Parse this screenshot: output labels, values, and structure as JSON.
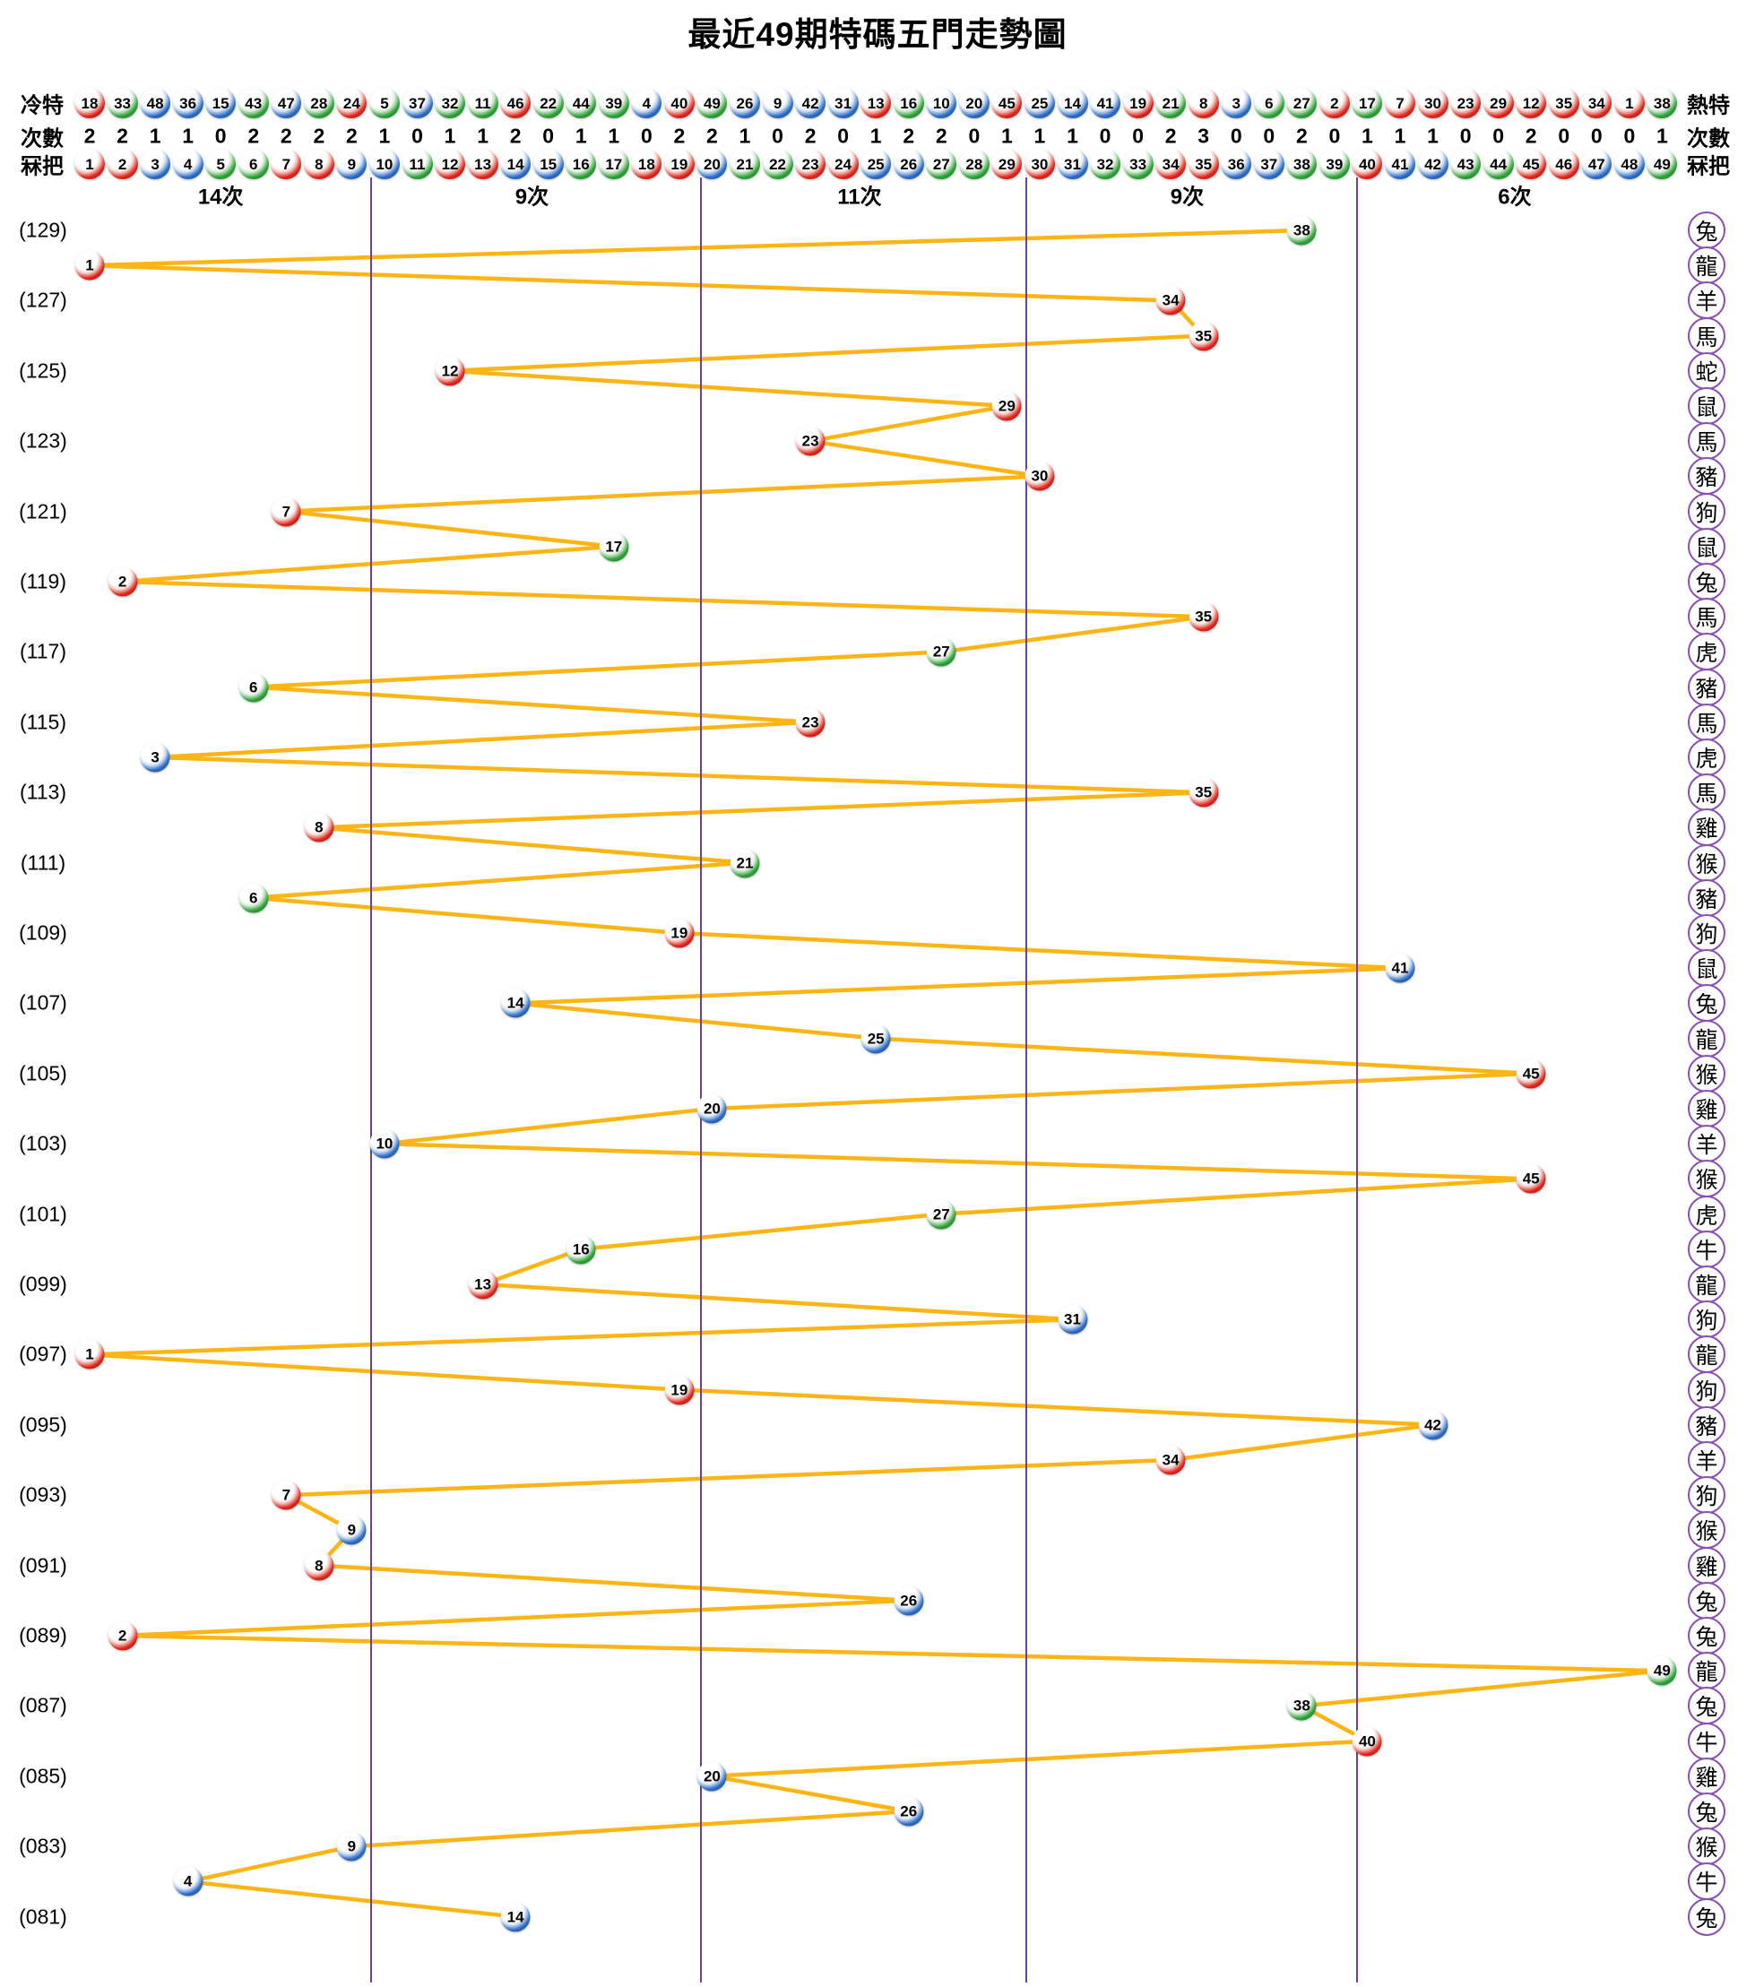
{
  "title": "最近49期特碼五門走勢圖",
  "colors": {
    "red": "#d6120f",
    "blue": "#1e5fc2",
    "green": "#2e9e41",
    "line": "#fdb515",
    "divider": "#6a3fa0",
    "zodiac_ring": "#8a4fb5"
  },
  "ball_color_groups": {
    "red": [
      1,
      2,
      7,
      8,
      12,
      13,
      18,
      19,
      23,
      24,
      29,
      30,
      34,
      35,
      40,
      45,
      46
    ],
    "blue": [
      3,
      4,
      9,
      10,
      14,
      15,
      20,
      25,
      26,
      31,
      36,
      37,
      41,
      42,
      47,
      48
    ],
    "green": [
      5,
      6,
      11,
      16,
      17,
      21,
      22,
      27,
      28,
      32,
      33,
      38,
      39,
      43,
      44,
      49
    ]
  },
  "header": {
    "cold_label": "冷特",
    "hot_label": "熱特",
    "count_label_left": "次數",
    "count_label_right": "次數",
    "number_label_left": "冧把",
    "number_label_right": "冧把",
    "cold_numbers": [
      18,
      33,
      48,
      36,
      15,
      43,
      47,
      28,
      24,
      5,
      37,
      32,
      11,
      46,
      22,
      44,
      39,
      4,
      40,
      49,
      26,
      9,
      42,
      31,
      13,
      16,
      10,
      20,
      45,
      25,
      14,
      41,
      19,
      21,
      8,
      3,
      6,
      27,
      2,
      17,
      7,
      30,
      23,
      29,
      12,
      35,
      34,
      1,
      38
    ],
    "counts": [
      2,
      2,
      1,
      1,
      0,
      2,
      2,
      2,
      2,
      1,
      0,
      1,
      1,
      2,
      0,
      1,
      1,
      0,
      2,
      2,
      1,
      0,
      2,
      0,
      1,
      2,
      2,
      0,
      1,
      1,
      1,
      0,
      0,
      2,
      3,
      0,
      0,
      2,
      0,
      1,
      1,
      1,
      0,
      0,
      2,
      0,
      0,
      0,
      1
    ],
    "numbers": [
      1,
      2,
      3,
      4,
      5,
      6,
      7,
      8,
      9,
      10,
      11,
      12,
      13,
      14,
      15,
      16,
      17,
      18,
      19,
      20,
      21,
      22,
      23,
      24,
      25,
      26,
      27,
      28,
      29,
      30,
      31,
      32,
      33,
      34,
      35,
      36,
      37,
      38,
      39,
      40,
      41,
      42,
      43,
      44,
      45,
      46,
      47,
      48,
      49
    ]
  },
  "sections": [
    {
      "label": "14次",
      "from": 1,
      "to": 9
    },
    {
      "label": "9次",
      "from": 10,
      "to": 19
    },
    {
      "label": "11次",
      "from": 20,
      "to": 29
    },
    {
      "label": "9次",
      "from": 30,
      "to": 39
    },
    {
      "label": "6次",
      "from": 40,
      "to": 49
    }
  ],
  "chart_data": {
    "type": "line",
    "title": "最近49期特碼五門走勢圖",
    "xlabel": "冧把 (ball number 1-49, five door groups)",
    "ylabel": "期 (period 129 down to 081)",
    "xlim": [
      1,
      49
    ],
    "legend": "none",
    "grid": "five vertical purple door dividers between 9/10, 19/20, 29/30, 39/40",
    "rows": [
      {
        "period": 129,
        "label": "(129)",
        "ball": 38,
        "zodiac": "兔"
      },
      {
        "period": 128,
        "label": "",
        "ball": 1,
        "zodiac": "龍"
      },
      {
        "period": 127,
        "label": "(127)",
        "ball": 34,
        "zodiac": "羊"
      },
      {
        "period": 126,
        "label": "",
        "ball": 35,
        "zodiac": "馬"
      },
      {
        "period": 125,
        "label": "(125)",
        "ball": 12,
        "zodiac": "蛇"
      },
      {
        "period": 124,
        "label": "",
        "ball": 29,
        "zodiac": "鼠"
      },
      {
        "period": 123,
        "label": "(123)",
        "ball": 23,
        "zodiac": "馬"
      },
      {
        "period": 122,
        "label": "",
        "ball": 30,
        "zodiac": "豬"
      },
      {
        "period": 121,
        "label": "(121)",
        "ball": 7,
        "zodiac": "狗"
      },
      {
        "period": 120,
        "label": "",
        "ball": 17,
        "zodiac": "鼠"
      },
      {
        "period": 119,
        "label": "(119)",
        "ball": 2,
        "zodiac": "兔"
      },
      {
        "period": 118,
        "label": "",
        "ball": 35,
        "zodiac": "馬"
      },
      {
        "period": 117,
        "label": "(117)",
        "ball": 27,
        "zodiac": "虎"
      },
      {
        "period": 116,
        "label": "",
        "ball": 6,
        "zodiac": "豬"
      },
      {
        "period": 115,
        "label": "(115)",
        "ball": 23,
        "zodiac": "馬"
      },
      {
        "period": 114,
        "label": "",
        "ball": 3,
        "zodiac": "虎"
      },
      {
        "period": 113,
        "label": "(113)",
        "ball": 35,
        "zodiac": "馬"
      },
      {
        "period": 112,
        "label": "",
        "ball": 8,
        "zodiac": "雞"
      },
      {
        "period": 111,
        "label": "(111)",
        "ball": 21,
        "zodiac": "猴"
      },
      {
        "period": 110,
        "label": "",
        "ball": 6,
        "zodiac": "豬"
      },
      {
        "period": 109,
        "label": "(109)",
        "ball": 19,
        "zodiac": "狗"
      },
      {
        "period": 108,
        "label": "",
        "ball": 41,
        "zodiac": "鼠"
      },
      {
        "period": 107,
        "label": "(107)",
        "ball": 14,
        "zodiac": "兔"
      },
      {
        "period": 106,
        "label": "",
        "ball": 25,
        "zodiac": "龍"
      },
      {
        "period": 105,
        "label": "(105)",
        "ball": 45,
        "zodiac": "猴"
      },
      {
        "period": 104,
        "label": "",
        "ball": 20,
        "zodiac": "雞"
      },
      {
        "period": 103,
        "label": "(103)",
        "ball": 10,
        "zodiac": "羊"
      },
      {
        "period": 102,
        "label": "",
        "ball": 45,
        "zodiac": "猴"
      },
      {
        "period": 101,
        "label": "(101)",
        "ball": 27,
        "zodiac": "虎"
      },
      {
        "period": 100,
        "label": "",
        "ball": 16,
        "zodiac": "牛"
      },
      {
        "period": 99,
        "label": "(099)",
        "ball": 13,
        "zodiac": "龍"
      },
      {
        "period": 98,
        "label": "",
        "ball": 31,
        "zodiac": "狗"
      },
      {
        "period": 97,
        "label": "(097)",
        "ball": 1,
        "zodiac": "龍"
      },
      {
        "period": 96,
        "label": "",
        "ball": 19,
        "zodiac": "狗"
      },
      {
        "period": 95,
        "label": "(095)",
        "ball": 42,
        "zodiac": "豬"
      },
      {
        "period": 94,
        "label": "",
        "ball": 34,
        "zodiac": "羊"
      },
      {
        "period": 93,
        "label": "(093)",
        "ball": 7,
        "zodiac": "狗"
      },
      {
        "period": 92,
        "label": "",
        "ball": 9,
        "zodiac": "猴"
      },
      {
        "period": 91,
        "label": "(091)",
        "ball": 8,
        "zodiac": "雞"
      },
      {
        "period": 90,
        "label": "",
        "ball": 26,
        "zodiac": "兔"
      },
      {
        "period": 89,
        "label": "(089)",
        "ball": 2,
        "zodiac": "兔"
      },
      {
        "period": 88,
        "label": "",
        "ball": 49,
        "zodiac": "龍"
      },
      {
        "period": 87,
        "label": "(087)",
        "ball": 38,
        "zodiac": "兔"
      },
      {
        "period": 86,
        "label": "",
        "ball": 40,
        "zodiac": "牛"
      },
      {
        "period": 85,
        "label": "(085)",
        "ball": 20,
        "zodiac": "雞"
      },
      {
        "period": 84,
        "label": "",
        "ball": 26,
        "zodiac": "兔"
      },
      {
        "period": 83,
        "label": "(083)",
        "ball": 9,
        "zodiac": "猴"
      },
      {
        "period": 82,
        "label": "",
        "ball": 4,
        "zodiac": "牛"
      },
      {
        "period": 81,
        "label": "(081)",
        "ball": 14,
        "zodiac": "兔"
      }
    ]
  }
}
